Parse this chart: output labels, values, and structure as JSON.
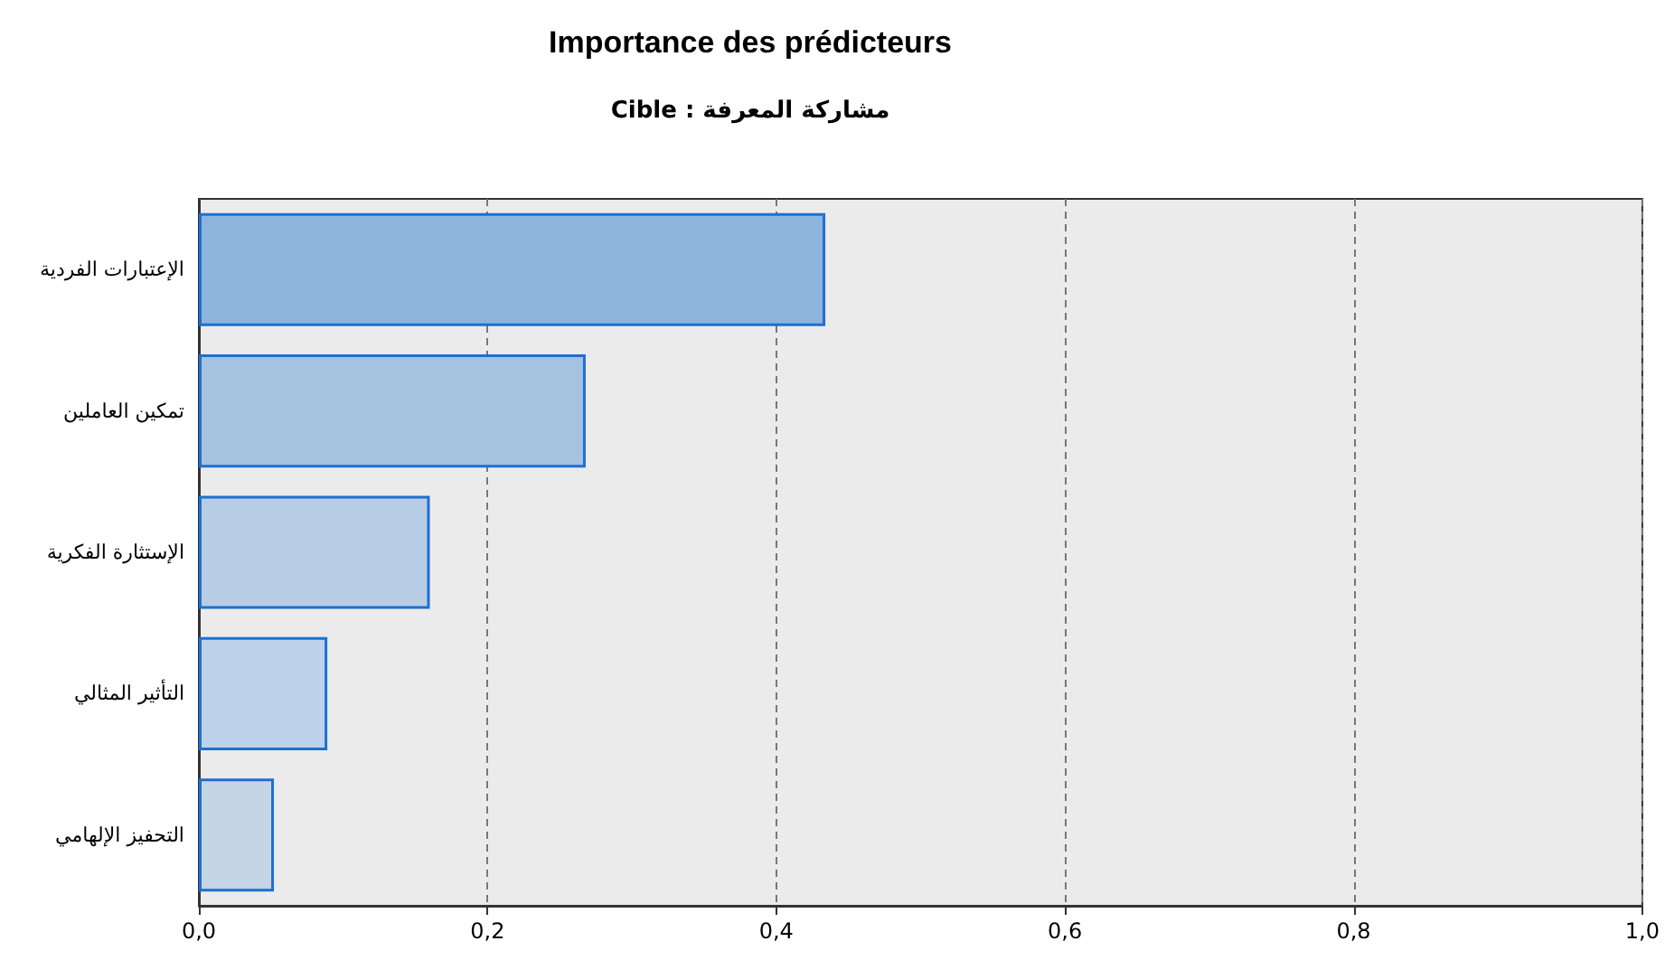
{
  "chart_data": {
    "type": "bar",
    "orientation": "horizontal",
    "title": "Importance des prédicteurs",
    "subtitle": "Cible : مشاركة المعرفة",
    "categories": [
      "الإعتبارات الفردية",
      "تمكين العاملين",
      "الإستثارة الفكرية",
      "التأثير المثالي",
      "التحفيز الإلهامي"
    ],
    "values": [
      0.434,
      0.268,
      0.16,
      0.089,
      0.052
    ],
    "colors": [
      "#8db4dd",
      "#a6c2e1",
      "#b7cde6",
      "#bdd2ea",
      "#c5d5e5"
    ],
    "xlim": [
      0,
      1
    ],
    "xticks": [
      {
        "value": 0,
        "label": "0,0"
      },
      {
        "value": 0.2,
        "label": "0,2"
      },
      {
        "value": 0.4,
        "label": "0,4"
      },
      {
        "value": 0.6,
        "label": "0,6"
      },
      {
        "value": 0.8,
        "label": "0,8"
      },
      {
        "value": 1,
        "label": "1,0"
      }
    ],
    "grid": "x"
  }
}
